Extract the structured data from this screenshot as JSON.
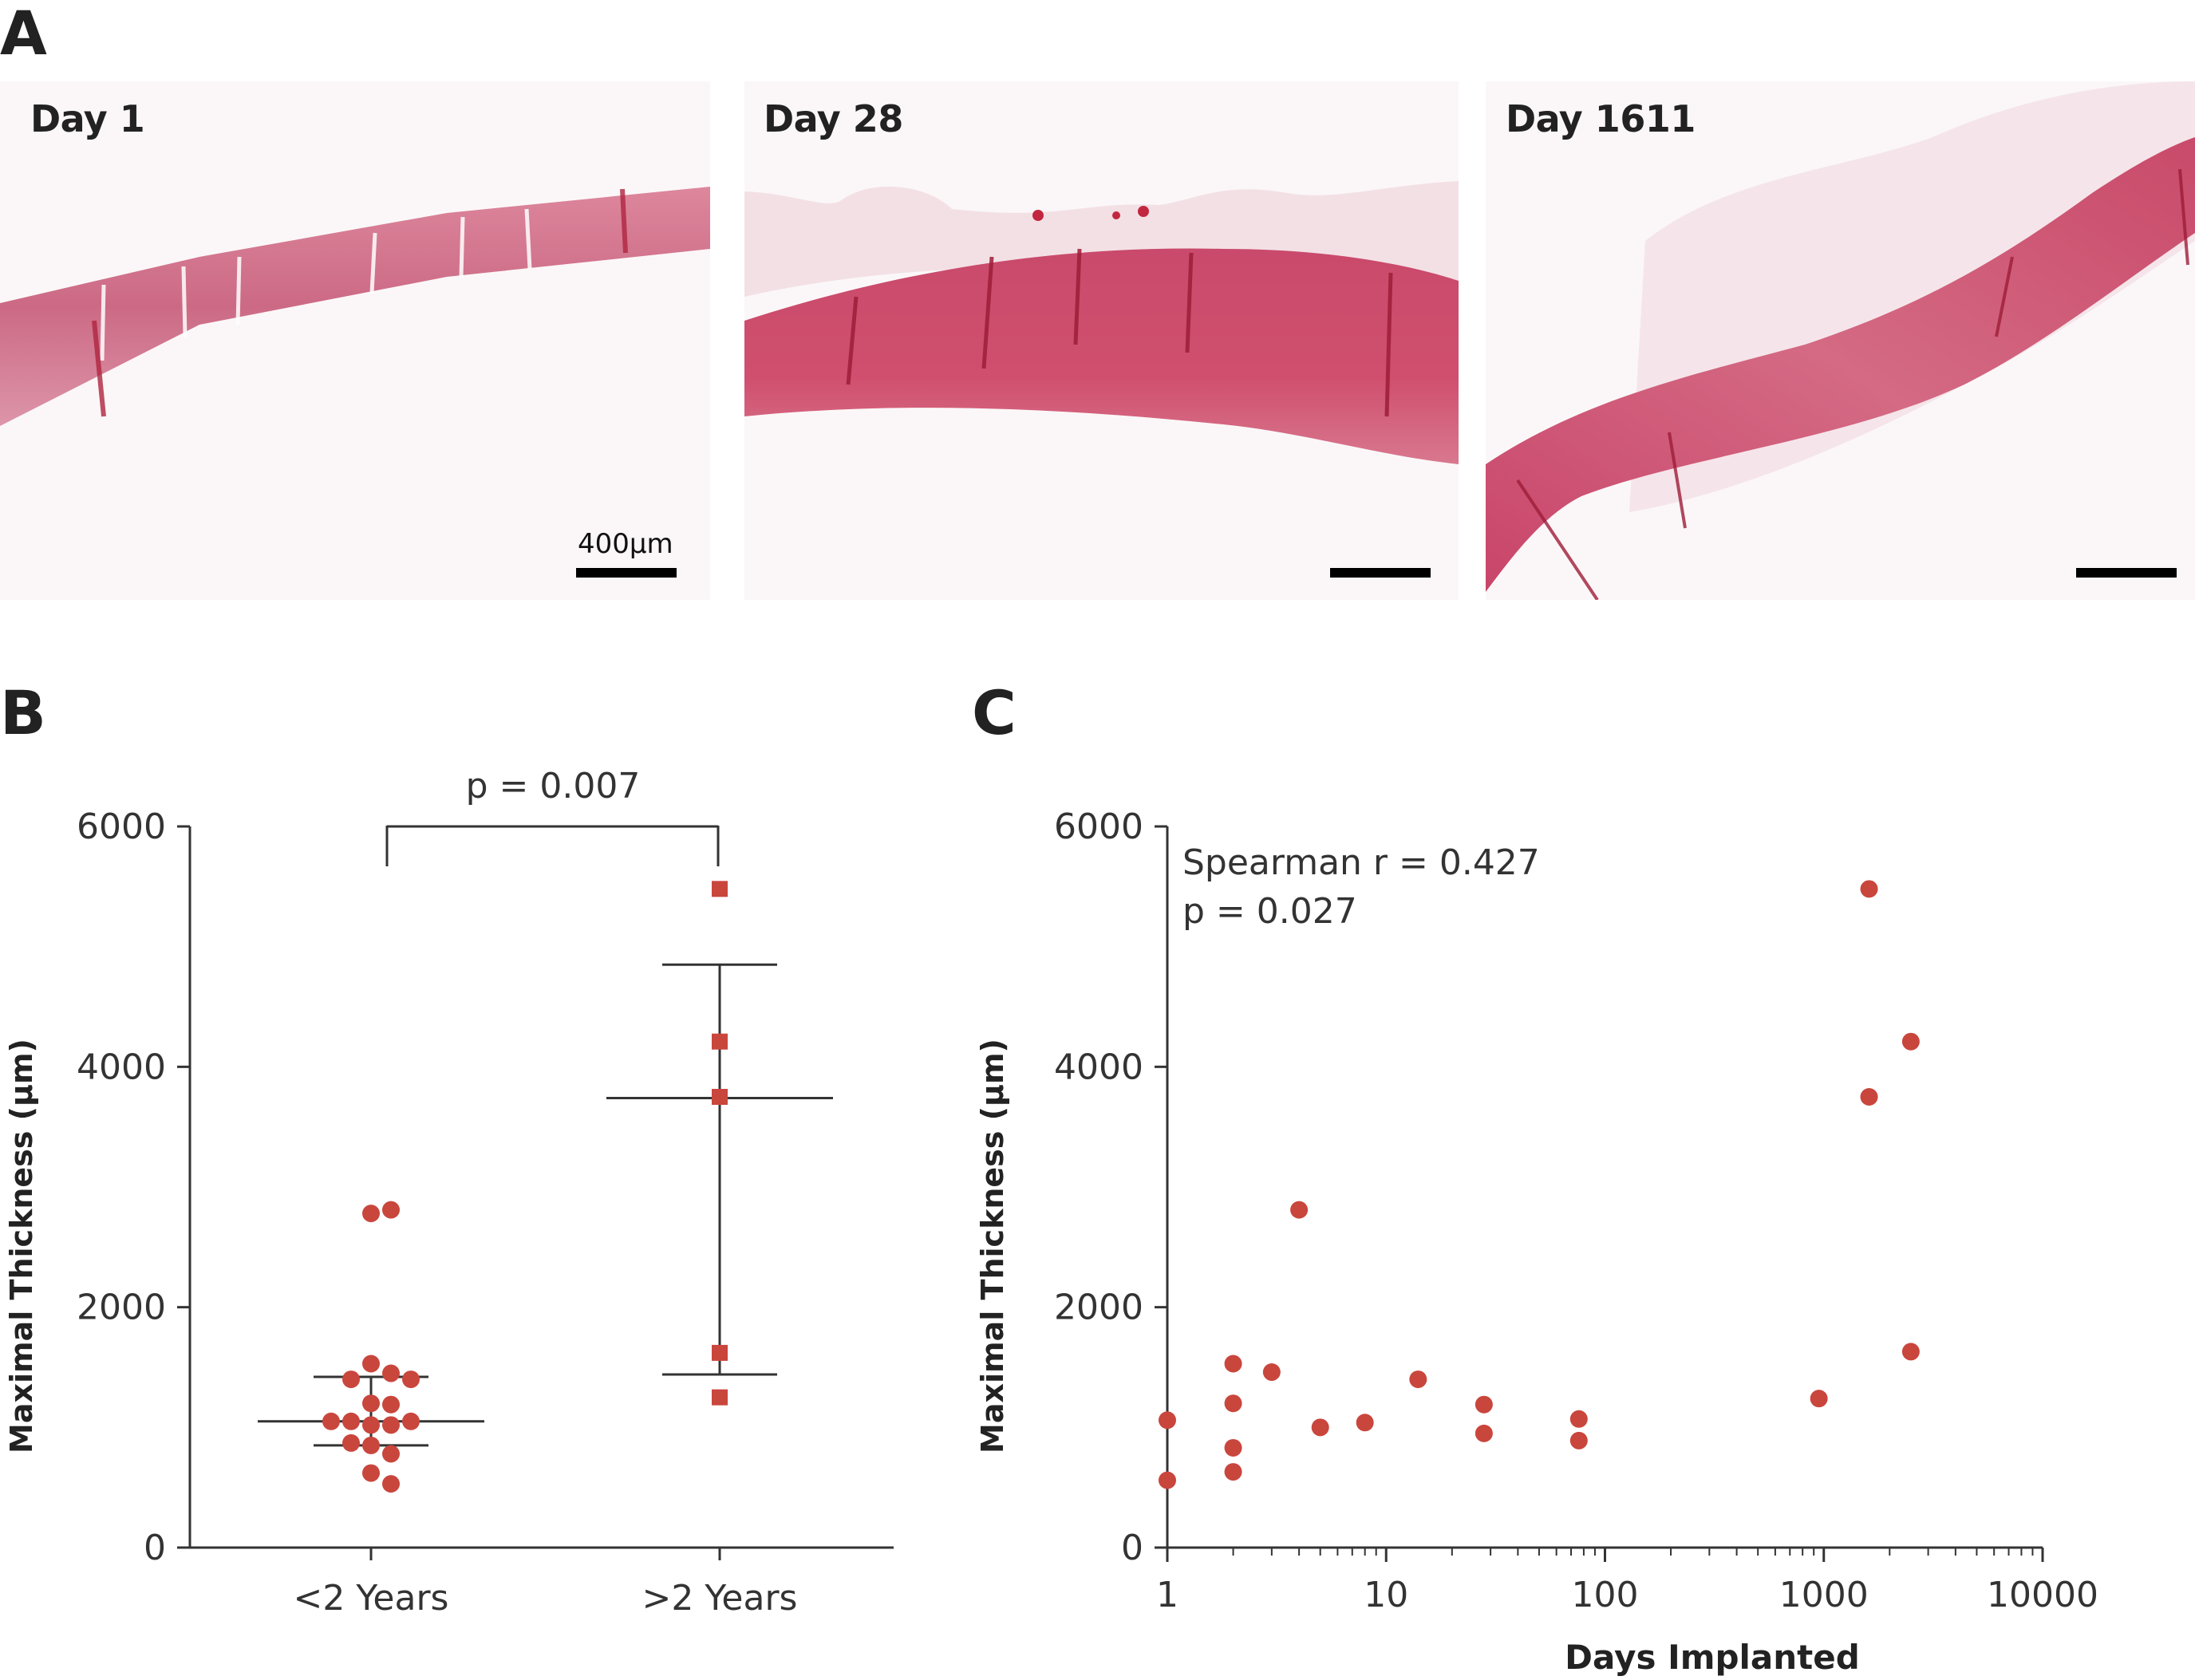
{
  "panels": {
    "a": {
      "letter": "A"
    },
    "b": {
      "letter": "B"
    },
    "c": {
      "letter": "C"
    }
  },
  "micrographs": [
    {
      "label": "Day 1",
      "scalebar_label": "400µm"
    },
    {
      "label": "Day 28",
      "scalebar_label": ""
    },
    {
      "label": "Day 1611",
      "scalebar_label": ""
    }
  ],
  "chart_data": [
    {
      "type": "scatter",
      "panel": "B",
      "ylabel": "Maximal Thickness (µm)",
      "xlabel": "",
      "ylim": [
        0,
        6000
      ],
      "yticks": [
        0,
        2000,
        4000,
        6000
      ],
      "categories": [
        "<2 Years",
        ">2 Years"
      ],
      "color": "#c9463d",
      "annotation": "p = 0.007",
      "series": [
        {
          "category": "<2 Years",
          "marker": "circle",
          "values": [
            2780,
            2810,
            1530,
            1450,
            1400,
            1400,
            1200,
            1190,
            1050,
            1050,
            1050,
            1020,
            1020,
            870,
            850,
            780,
            620,
            530
          ],
          "mean": 1050,
          "error_low": 850,
          "error_high": 1420
        },
        {
          "category": ">2 Years",
          "marker": "square",
          "values": [
            5480,
            4210,
            3750,
            1620,
            1250
          ],
          "mean": 3740,
          "error_low": 1440,
          "error_high": 4850
        }
      ]
    },
    {
      "type": "scatter",
      "panel": "C",
      "xlabel": "Days Implanted",
      "ylabel": "Maximal Thickness (µm)",
      "xscale": "log",
      "xlim": [
        1,
        10000
      ],
      "xticks": [
        1,
        10,
        100,
        1000,
        10000
      ],
      "ylim": [
        0,
        6000
      ],
      "yticks": [
        0,
        2000,
        4000,
        6000
      ],
      "color": "#c9463d",
      "annotation": [
        "Spearman r = 0.427",
        "p = 0.027"
      ],
      "points": [
        {
          "x": 1,
          "y": 1060
        },
        {
          "x": 1,
          "y": 560
        },
        {
          "x": 2,
          "y": 1530
        },
        {
          "x": 2,
          "y": 1200
        },
        {
          "x": 2,
          "y": 830
        },
        {
          "x": 2,
          "y": 630
        },
        {
          "x": 3,
          "y": 1460
        },
        {
          "x": 4,
          "y": 2810
        },
        {
          "x": 5,
          "y": 1000
        },
        {
          "x": 8,
          "y": 1040
        },
        {
          "x": 14,
          "y": 1400
        },
        {
          "x": 28,
          "y": 1190
        },
        {
          "x": 28,
          "y": 950
        },
        {
          "x": 76,
          "y": 1070
        },
        {
          "x": 76,
          "y": 890
        },
        {
          "x": 950,
          "y": 1240
        },
        {
          "x": 1611,
          "y": 5480
        },
        {
          "x": 1611,
          "y": 3750
        },
        {
          "x": 2500,
          "y": 4210
        },
        {
          "x": 2500,
          "y": 1630
        }
      ]
    }
  ]
}
